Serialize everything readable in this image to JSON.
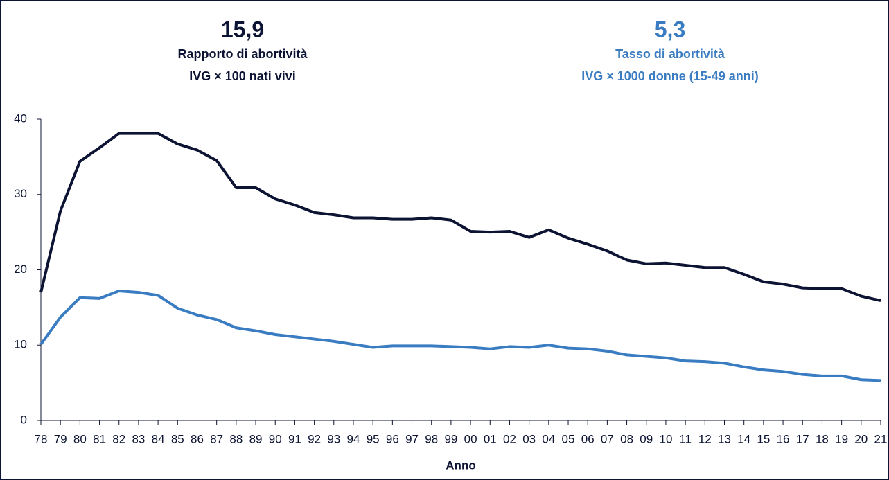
{
  "chart_data": {
    "type": "line",
    "x_label": "Anno",
    "categories": [
      "78",
      "79",
      "80",
      "81",
      "82",
      "83",
      "84",
      "85",
      "86",
      "87",
      "88",
      "89",
      "90",
      "91",
      "92",
      "93",
      "94",
      "95",
      "96",
      "97",
      "98",
      "99",
      "00",
      "01",
      "02",
      "03",
      "04",
      "05",
      "06",
      "07",
      "08",
      "09",
      "10",
      "11",
      "12",
      "13",
      "14",
      "15",
      "16",
      "17",
      "18",
      "19",
      "20",
      "21"
    ],
    "series": [
      {
        "name": "Rapporto di abortività",
        "unit_label": "IVG × 100 nati vivi",
        "headline_label": "15,9",
        "color": "#0d1433",
        "values": [
          17.0,
          27.8,
          34.4,
          36.2,
          38.1,
          38.1,
          38.1,
          36.7,
          35.9,
          34.5,
          30.9,
          30.9,
          29.4,
          28.6,
          27.6,
          27.3,
          26.9,
          26.9,
          26.7,
          26.7,
          26.9,
          26.6,
          25.1,
          25.0,
          25.1,
          24.3,
          25.3,
          24.2,
          23.4,
          22.5,
          21.3,
          20.8,
          20.9,
          20.6,
          20.3,
          20.3,
          19.4,
          18.4,
          18.1,
          17.6,
          17.5,
          17.5,
          16.5,
          15.9
        ]
      },
      {
        "name": "Tasso di abortività",
        "unit_label": "IVG × 1000 donne (15-49 anni)",
        "headline_label": "5,3",
        "color": "#3a7cc1",
        "values": [
          10.1,
          13.7,
          16.3,
          16.2,
          17.2,
          17.0,
          16.6,
          14.9,
          14.0,
          13.4,
          12.3,
          11.9,
          11.4,
          11.1,
          10.8,
          10.5,
          10.1,
          9.7,
          9.9,
          9.9,
          9.9,
          9.8,
          9.7,
          9.5,
          9.8,
          9.7,
          10.0,
          9.6,
          9.5,
          9.2,
          8.7,
          8.5,
          8.3,
          7.9,
          7.8,
          7.6,
          7.1,
          6.7,
          6.5,
          6.1,
          5.9,
          5.9,
          5.4,
          5.3
        ]
      }
    ],
    "ylim": [
      0,
      40
    ],
    "yticks": [
      0,
      10,
      20,
      30,
      40
    ],
    "grid": false
  }
}
